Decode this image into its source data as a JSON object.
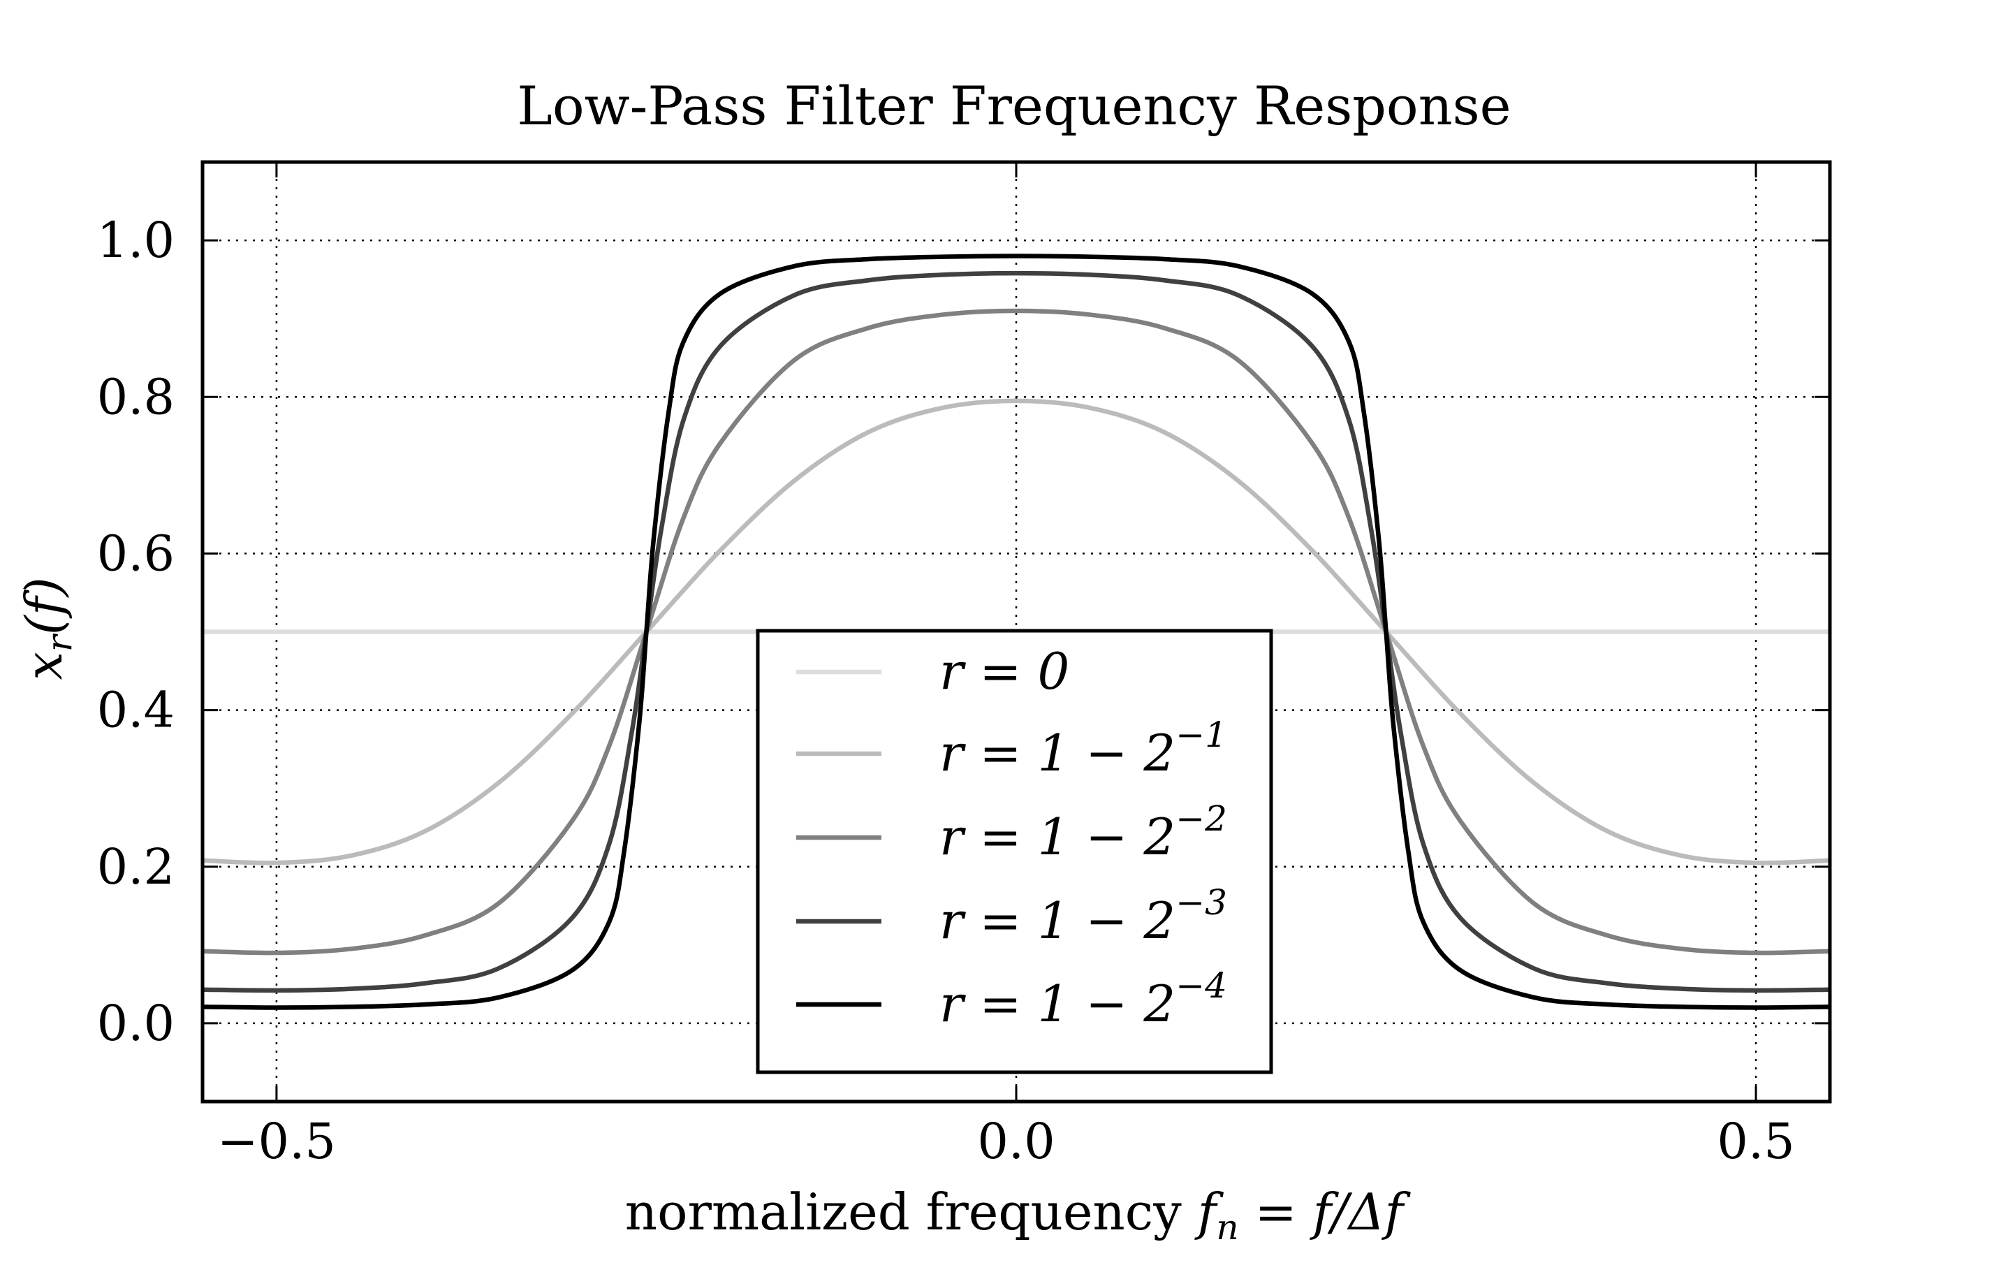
{
  "chart_data": {
    "type": "line",
    "title": "Low-Pass Filter Frequency Response",
    "xlabel": "normalized frequency",
    "xlabel_math": {
      "lhs": "f",
      "lhs_sub": "n",
      "eq": "=",
      "rhs": "f/Δf"
    },
    "ylabel_math": {
      "base": "x",
      "sub": "r",
      "arg": "(f)"
    },
    "xlim": [
      -0.55,
      0.55
    ],
    "ylim": [
      -0.1,
      1.1
    ],
    "xticks": [
      -0.5,
      0.0,
      0.5
    ],
    "xtick_labels": [
      "−0.5",
      "0.0",
      "0.5"
    ],
    "yticks": [
      0.0,
      0.2,
      0.4,
      0.6,
      0.8,
      1.0
    ],
    "ytick_labels": [
      "0.0",
      "0.2",
      "0.4",
      "0.6",
      "0.8",
      "1.0"
    ],
    "grid": true,
    "grid_style": "dotted",
    "legend_position": "lower-center",
    "colors": {
      "r0": "#dddddd",
      "r1": "#bbbbbb",
      "r2": "#808080",
      "r3": "#404040",
      "r4": "#000000",
      "axis": "#000000",
      "grid": "#000000"
    },
    "series": [
      {
        "name": "r = 0",
        "legend": {
          "base": "r = 0",
          "sup": ""
        },
        "color": "#dddddd",
        "x": [
          -0.55,
          0.55
        ],
        "y": [
          0.5,
          0.5
        ]
      },
      {
        "name": "r = 1 − 2^−1",
        "legend": {
          "base": "r = 1 − 2",
          "sup": "−1"
        },
        "color": "#bbbbbb",
        "x": [
          -0.55,
          -0.5,
          -0.45,
          -0.4,
          -0.35,
          -0.3,
          -0.25,
          -0.2,
          -0.15,
          -0.1,
          -0.05,
          0,
          0.05,
          0.1,
          0.15,
          0.2,
          0.25,
          0.3,
          0.35,
          0.4,
          0.45,
          0.5,
          0.55
        ],
        "y": [
          0.208,
          0.205,
          0.214,
          0.245,
          0.307,
          0.396,
          0.5,
          0.604,
          0.693,
          0.755,
          0.786,
          0.795,
          0.786,
          0.755,
          0.693,
          0.604,
          0.5,
          0.396,
          0.307,
          0.245,
          0.214,
          0.205,
          0.208
        ]
      },
      {
        "name": "r = 1 − 2^−2",
        "legend": {
          "base": "r = 1 − 2",
          "sup": "−2"
        },
        "color": "#808080",
        "x": [
          -0.55,
          -0.5,
          -0.45,
          -0.4,
          -0.35,
          -0.3,
          -0.275,
          -0.25,
          -0.225,
          -0.2,
          -0.15,
          -0.1,
          -0.05,
          0,
          0.05,
          0.1,
          0.15,
          0.2,
          0.225,
          0.25,
          0.275,
          0.3,
          0.35,
          0.4,
          0.45,
          0.5,
          0.55
        ],
        "y": [
          0.092,
          0.09,
          0.095,
          0.112,
          0.153,
          0.259,
          0.355,
          0.5,
          0.645,
          0.741,
          0.847,
          0.888,
          0.905,
          0.91,
          0.905,
          0.888,
          0.847,
          0.741,
          0.645,
          0.5,
          0.355,
          0.259,
          0.153,
          0.112,
          0.095,
          0.09,
          0.092
        ]
      },
      {
        "name": "r = 1 − 2^−3",
        "legend": {
          "base": "r = 1 − 2",
          "sup": "−3"
        },
        "color": "#404040",
        "x": [
          -0.55,
          -0.5,
          -0.45,
          -0.4,
          -0.35,
          -0.3,
          -0.275,
          -0.26,
          -0.25,
          -0.24,
          -0.225,
          -0.2,
          -0.15,
          -0.1,
          -0.05,
          0,
          0.05,
          0.1,
          0.15,
          0.2,
          0.225,
          0.24,
          0.25,
          0.26,
          0.275,
          0.3,
          0.35,
          0.4,
          0.45,
          0.5,
          0.55
        ],
        "y": [
          0.043,
          0.042,
          0.044,
          0.051,
          0.07,
          0.135,
          0.23,
          0.37,
          0.5,
          0.63,
          0.77,
          0.865,
          0.93,
          0.949,
          0.956,
          0.958,
          0.956,
          0.949,
          0.93,
          0.865,
          0.77,
          0.63,
          0.5,
          0.37,
          0.23,
          0.135,
          0.07,
          0.051,
          0.044,
          0.042,
          0.043
        ]
      },
      {
        "name": "r = 1 − 2^−4",
        "legend": {
          "base": "r = 1 − 2",
          "sup": "−4"
        },
        "color": "#000000",
        "x": [
          -0.55,
          -0.5,
          -0.45,
          -0.4,
          -0.35,
          -0.3,
          -0.275,
          -0.265,
          -0.255,
          -0.25,
          -0.245,
          -0.235,
          -0.225,
          -0.2,
          -0.15,
          -0.1,
          -0.05,
          0,
          0.05,
          0.1,
          0.15,
          0.2,
          0.225,
          0.235,
          0.245,
          0.25,
          0.255,
          0.265,
          0.275,
          0.3,
          0.35,
          0.4,
          0.45,
          0.5,
          0.55
        ],
        "y": [
          0.021,
          0.02,
          0.021,
          0.024,
          0.033,
          0.068,
          0.13,
          0.22,
          0.38,
          0.5,
          0.62,
          0.78,
          0.87,
          0.932,
          0.967,
          0.976,
          0.979,
          0.98,
          0.979,
          0.976,
          0.967,
          0.932,
          0.87,
          0.78,
          0.62,
          0.5,
          0.38,
          0.22,
          0.13,
          0.068,
          0.033,
          0.024,
          0.021,
          0.02,
          0.021
        ]
      }
    ]
  }
}
